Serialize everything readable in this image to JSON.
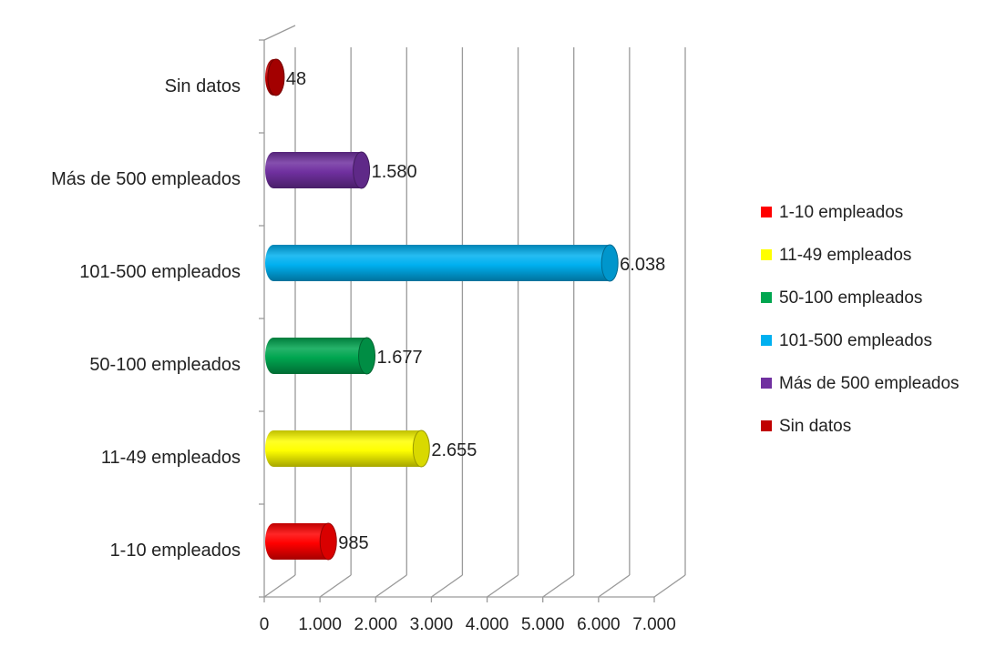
{
  "chart_data": {
    "type": "bar",
    "orientation": "horizontal",
    "style": "3d-cylinder",
    "title": "",
    "xlabel": "",
    "ylabel": "",
    "xlim": [
      0,
      7000
    ],
    "x_ticks": [
      0,
      1000,
      2000,
      3000,
      4000,
      5000,
      6000,
      7000
    ],
    "x_tick_labels": [
      "0",
      "1.000",
      "2.000",
      "3.000",
      "4.000",
      "5.000",
      "6.000",
      "7.000"
    ],
    "grid": "vertical",
    "legend_position": "right",
    "categories": [
      "1-10 empleados",
      "11-49 empleados",
      "50-100 empleados",
      "101-500 empleados",
      "Más de 500 empleados",
      "Sin datos"
    ],
    "values": [
      985,
      2655,
      1677,
      6038,
      1580,
      48
    ],
    "value_labels": [
      "985",
      "2.655",
      "1.677",
      "6.038",
      "1.580",
      "48"
    ],
    "colors": [
      "#ff0000",
      "#ffff00",
      "#00a650",
      "#00b0f0",
      "#7030a0",
      "#c00000"
    ]
  }
}
